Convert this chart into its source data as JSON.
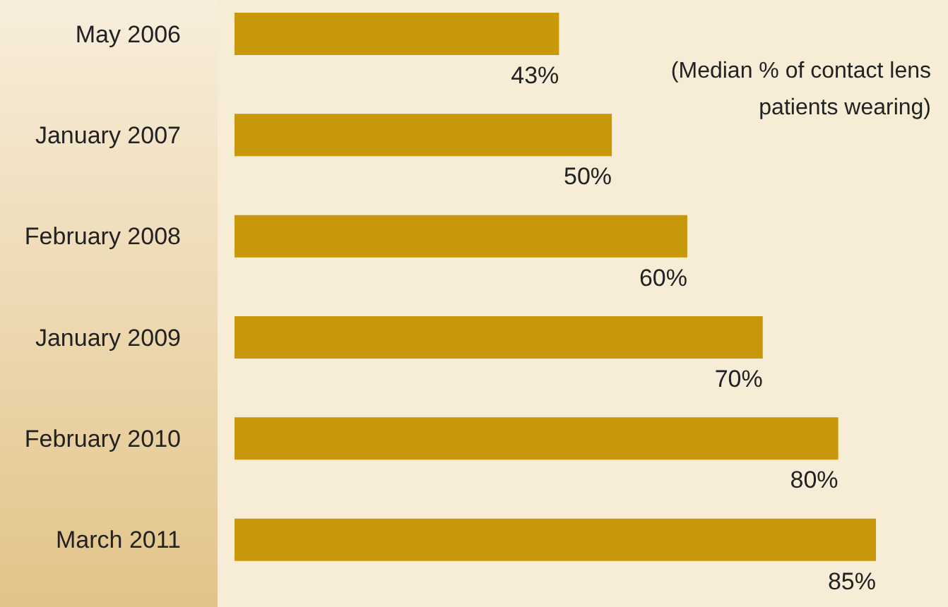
{
  "chart_data": {
    "type": "bar",
    "orientation": "horizontal",
    "categories": [
      "May 2006",
      "January 2007",
      "February 2008",
      "January 2009",
      "February 2010",
      "March 2011"
    ],
    "values": [
      43,
      50,
      60,
      70,
      80,
      85
    ],
    "value_labels": [
      "43%",
      "50%",
      "60%",
      "70%",
      "80%",
      "85%"
    ],
    "color": "#c8980a",
    "annotations": [
      "(Median % of contact lens patients wearing)"
    ],
    "tick_labels": "y"
  }
}
